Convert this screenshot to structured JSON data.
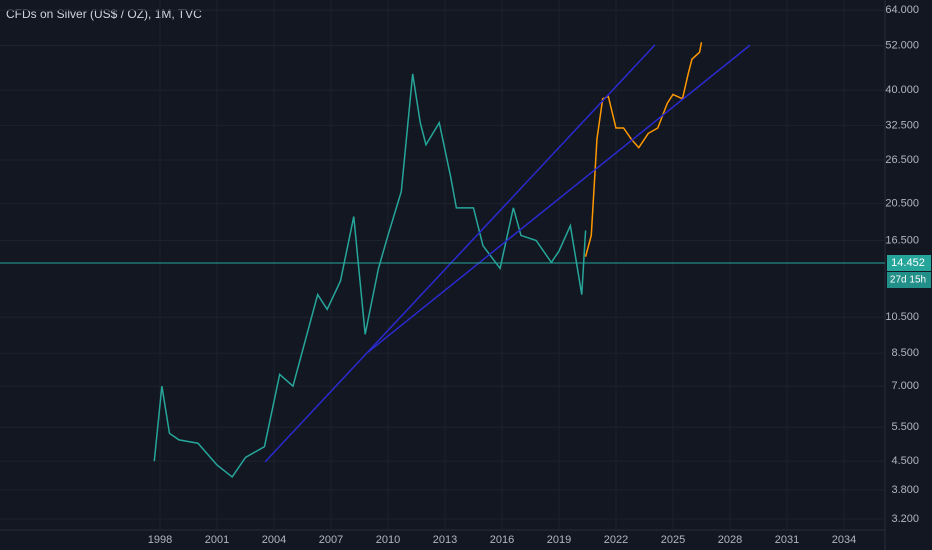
{
  "chart_data": {
    "type": "line",
    "title": "CFDs on Silver (US$ / OZ), 1M, TVC",
    "log_y": true,
    "grid": true,
    "xlim": [
      1989.58,
      2036.16
    ],
    "xticks": [
      1998,
      2001,
      2004,
      2007,
      2010,
      2013,
      2016,
      2019,
      2022,
      2025,
      2028,
      2031,
      2034
    ],
    "ylim": [
      3.0,
      68
    ],
    "yticks": [
      {
        "value": 3.2,
        "label": "3.200"
      },
      {
        "value": 3.8,
        "label": "3.800"
      },
      {
        "value": 4.5,
        "label": "4.500"
      },
      {
        "value": 5.5,
        "label": "5.500"
      },
      {
        "value": 7,
        "label": "7.000"
      },
      {
        "value": 8.5,
        "label": "8.500"
      },
      {
        "value": 10.5,
        "label": "10.500"
      },
      {
        "value": 16.5,
        "label": "16.500"
      },
      {
        "value": 20.5,
        "label": "20.500"
      },
      {
        "value": 26.5,
        "label": "26.500"
      },
      {
        "value": 32.5,
        "label": "32.500"
      },
      {
        "value": 40,
        "label": "40.000"
      },
      {
        "value": 52,
        "label": "52.000"
      },
      {
        "value": 64,
        "label": "64.000"
      }
    ],
    "series": [
      {
        "color": "#26a69a",
        "x": [
          1997.7,
          1998.1,
          1998.5,
          1999,
          2000,
          2001,
          2001.8,
          2002.5,
          2003.5,
          2004.3,
          2005,
          2006.3,
          2006.8,
          2007.5,
          2008.2,
          2008.8,
          2009.5,
          2010,
          2010.7,
          2011.3,
          2011.7,
          2012,
          2012.7,
          2013.3,
          2013.6,
          2014.5,
          2015,
          2015.9,
          2016.6,
          2017,
          2017.8,
          2018.6,
          2019,
          2019.6,
          2020.2,
          2020.4
        ],
        "values": [
          4.5,
          7.0,
          5.3,
          5.1,
          5.0,
          4.4,
          4.1,
          4.6,
          4.9,
          7.5,
          7.0,
          12,
          11,
          13,
          19,
          9.5,
          14,
          17,
          22,
          44,
          33,
          29,
          33,
          24,
          20,
          20,
          16,
          14,
          20,
          17,
          16.5,
          14.5,
          15.5,
          18,
          12,
          17.5
        ]
      },
      {
        "color": "#ff9800",
        "x": [
          2020.4,
          2020.7,
          2021,
          2021.3,
          2021.6,
          2022,
          2022.4,
          2022.8,
          2023.2,
          2023.7,
          2024.2,
          2024.7,
          2025,
          2025.5,
          2025.8,
          2026,
          2026.4,
          2026.5
        ],
        "values": [
          15,
          17,
          30,
          38,
          38.5,
          32,
          32,
          30,
          28.5,
          31,
          32,
          37,
          39,
          38,
          44,
          48,
          50,
          53
        ]
      },
      {
        "color": "#2a2ad0",
        "x": [
          2003.53,
          2024.05
        ],
        "values": [
          4.48,
          52.2
        ]
      },
      {
        "color": "#2a2ad0",
        "x": [
          2008.95,
          2029.05
        ],
        "values": [
          8.55,
          52.1
        ]
      }
    ],
    "last_price": {
      "value": 14.452,
      "label": "14.452",
      "color": "#26a69a"
    },
    "countdown": "27d 15h"
  }
}
